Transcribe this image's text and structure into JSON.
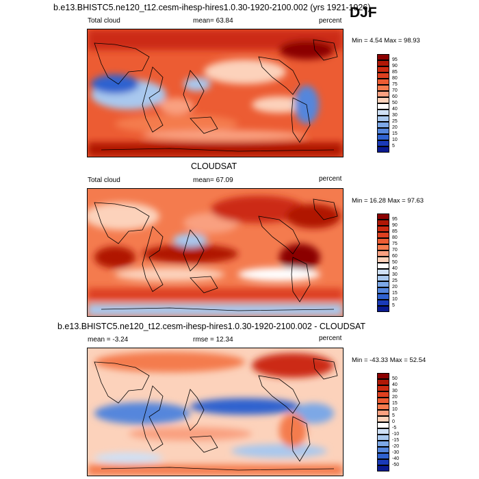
{
  "header": {
    "title": "b.e13.BHISTC5.ne120_t12.cesm-ihesp-hires1.0.30-1920-2100.002 (yrs 1921-1926)",
    "season": "DJF"
  },
  "panels": [
    {
      "heading": "",
      "left": "Total cloud",
      "center": "mean=  63.84",
      "right": "percent",
      "minmax": "Min =   4.54 Max =  98.93",
      "colorbar_labels": [
        "95",
        "90",
        "85",
        "80",
        "75",
        "70",
        "60",
        "50",
        "40",
        "30",
        "25",
        "20",
        "15",
        "10",
        "5"
      ]
    },
    {
      "heading": "CLOUDSAT",
      "left": "Total cloud",
      "center": "mean=  67.09",
      "right": "percent",
      "minmax": "Min =  16.28 Max =  97.63",
      "colorbar_labels": [
        "95",
        "90",
        "85",
        "80",
        "75",
        "70",
        "60",
        "50",
        "40",
        "30",
        "25",
        "20",
        "15",
        "10",
        "5"
      ]
    },
    {
      "heading": "b.e13.BHISTC5.ne120_t12.cesm-ihesp-hires1.0.30-1920-2100.002 - CLOUDSAT",
      "left": "mean =  -3.24",
      "center": "rmse =  12.34",
      "right": "percent",
      "minmax": "Min = -43.33 Max =  52.54",
      "colorbar_labels": [
        "50",
        "40",
        "30",
        "20",
        "15",
        "10",
        "5",
        "0",
        "-5",
        "-10",
        "-15",
        "-20",
        "-30",
        "-40",
        "-50"
      ]
    }
  ],
  "colors": {
    "seq16": [
      "#8b0000",
      "#b01806",
      "#cc2b12",
      "#dd4020",
      "#ec5c33",
      "#f47b4e",
      "#f9a080",
      "#fcd2bb",
      "#ffffff",
      "#cfe0f5",
      "#a9c8ee",
      "#7da8e6",
      "#5586dc",
      "#2f62cf",
      "#1a3ab8",
      "#0a1a8f"
    ]
  }
}
